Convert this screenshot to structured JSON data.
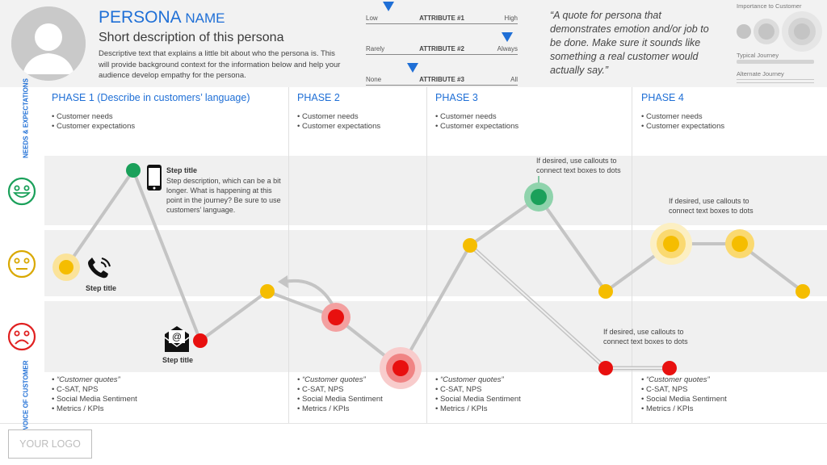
{
  "persona": {
    "name_main": "PERSONA",
    "name_suffix": "NAME",
    "short": "Short description of this persona",
    "desc": "Descriptive text that explains a little bit about who the persona is. This will provide background context for the information below and help your audience develop empathy for the persona."
  },
  "attributes": [
    {
      "low": "Low",
      "label": "ATTRIBUTE #1",
      "high": "High",
      "level": 0.15
    },
    {
      "low": "Rarely",
      "label": "ATTRIBUTE #2",
      "high": "Always",
      "level": 0.93
    },
    {
      "low": "None",
      "label": "ATTRIBUTE #3",
      "high": "All",
      "level": 0.31
    }
  ],
  "quote": "“A quote for persona that demonstrates emotion and/or job to be done. Make sure it sounds like something a real customer would actually say.”",
  "legend": {
    "importance": "Importance to Customer",
    "typical": "Typical Journey",
    "alternate": "Alternate Journey"
  },
  "side_labels": {
    "needs": "NEEDS & EXPECTATIONS",
    "voice": "VOICE OF CUSTOMER"
  },
  "phases": [
    {
      "title": "PHASE 1 (Describe in customers’ language)",
      "needs": [
        "Customer needs",
        "Customer expectations"
      ],
      "voice": [
        "“Customer quotes”",
        "C-SAT, NPS",
        "Social Media Sentiment",
        "Metrics / KPIs"
      ]
    },
    {
      "title": "PHASE 2",
      "needs": [
        "Customer needs",
        "Customer expectations"
      ],
      "voice": [
        "“Customer quotes”",
        "C-SAT, NPS",
        "Social Media Sentiment",
        "Metrics / KPIs"
      ]
    },
    {
      "title": "PHASE 3",
      "needs": [
        "Customer needs",
        "Customer expectations"
      ],
      "voice": [
        "“Customer quotes”",
        "C-SAT, NPS",
        "Social Media Sentiment",
        "Metrics / KPIs"
      ]
    },
    {
      "title": "PHASE 4",
      "needs": [
        "Customer needs",
        "Customer expectations"
      ],
      "voice": [
        "“Customer quotes”",
        "C-SAT, NPS",
        "Social Media Sentiment",
        "Metrics / KPIs"
      ]
    }
  ],
  "steps": {
    "mobile_title": "Step title",
    "mobile_desc": "Step description, which can be a bit longer. What is happening at this point in the journey? Be sure to use customers’ language.",
    "phone_title": "Step title",
    "email_title": "Step title"
  },
  "callouts": [
    "If desired, use callouts to connect text boxes to dots",
    "If desired, use callouts to connect text boxes to dots",
    "If desired, use callouts to connect text boxes to dots"
  ],
  "logo": "YOUR LOGO",
  "colors": {
    "accent": "#1f6fd6",
    "happy": "#1aa05a",
    "neutral": "#f5bd00",
    "sad": "#e02020",
    "path": "#bdbdbd"
  },
  "icons": [
    "happy-face-icon",
    "neutral-face-icon",
    "sad-face-icon",
    "mobile-phone-icon",
    "telephone-icon",
    "email-icon",
    "person-icon"
  ]
}
